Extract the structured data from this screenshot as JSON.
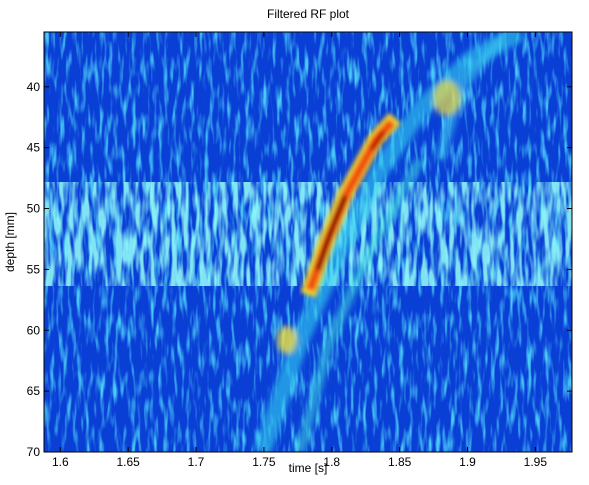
{
  "chart_data": {
    "type": "heatmap",
    "title": "Filtered RF plot",
    "xlabel": "time [s]",
    "ylabel": "depth [mm]",
    "xlim": [
      1.588,
      1.977
    ],
    "xticks": [
      1.6,
      1.65,
      1.7,
      1.75,
      1.8,
      1.85,
      1.9,
      1.95
    ],
    "ylim": [
      35.5,
      70
    ],
    "yticks": [
      40,
      45,
      50,
      55,
      60,
      65,
      70
    ],
    "y_reversed": true
  }
}
